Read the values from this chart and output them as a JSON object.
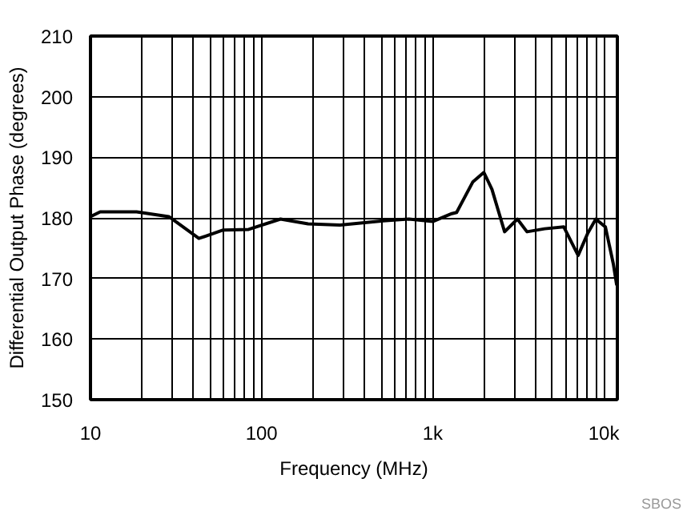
{
  "chart_data": {
    "type": "line",
    "xlabel": "Frequency (MHz)",
    "ylabel": "Differential Output Phase (degrees)",
    "log": "x",
    "grid": true,
    "marker": "none",
    "line_style": "solid",
    "xlim": [
      10,
      12000
    ],
    "ylim": [
      150,
      210
    ],
    "yticks": [
      150,
      160,
      170,
      180,
      190,
      200,
      210
    ],
    "xticks": [
      10,
      {
        "value": 20,
        "label": null
      },
      {
        "value": 30,
        "label": null
      },
      {
        "value": 40,
        "label": null
      },
      {
        "value": 50,
        "label": null
      },
      {
        "value": 60,
        "label": null
      },
      {
        "value": 70,
        "label": null
      },
      {
        "value": 80,
        "label": null
      },
      {
        "value": 90,
        "label": null
      },
      100,
      {
        "value": 200,
        "label": null
      },
      {
        "value": 300,
        "label": null
      },
      {
        "value": 400,
        "label": null
      },
      {
        "value": 500,
        "label": null
      },
      {
        "value": 600,
        "label": null
      },
      {
        "value": 700,
        "label": null
      },
      {
        "value": 800,
        "label": null
      },
      {
        "value": 900,
        "label": null
      },
      {
        "value": 1000,
        "label": "1k"
      },
      {
        "value": 2000,
        "label": null
      },
      {
        "value": 3000,
        "label": null
      },
      {
        "value": 4000,
        "label": null
      },
      {
        "value": 5000,
        "label": null
      },
      {
        "value": 6000,
        "label": null
      },
      {
        "value": 7000,
        "label": null
      },
      {
        "value": 8000,
        "label": null
      },
      {
        "value": 9000,
        "label": null
      },
      {
        "value": 10000,
        "label": "10k"
      }
    ],
    "annotations": [
      "SBOS"
    ],
    "series": [
      {
        "color": "#000000",
        "x": [
          10,
          11.4,
          18.6,
          28.7,
          43,
          59.7,
          84,
          129,
          187,
          287,
          513,
          725,
          1000,
          1294,
          1380,
          1714,
          1991,
          2220,
          2632,
          3127,
          3557,
          4510,
          5840,
          7080,
          8070,
          8980,
          10220,
          11370,
          11880,
          12000
        ],
        "values": [
          180.2,
          181,
          181,
          180.2,
          176.6,
          178,
          178.1,
          179.8,
          179,
          178.8,
          179.5,
          179.8,
          179.4,
          180.7,
          180.9,
          185.9,
          187.5,
          184.7,
          177.7,
          179.8,
          177.7,
          178.2,
          178.5,
          173.8,
          177.5,
          179.8,
          178.5,
          172.4,
          169,
          169
        ]
      }
    ]
  }
}
